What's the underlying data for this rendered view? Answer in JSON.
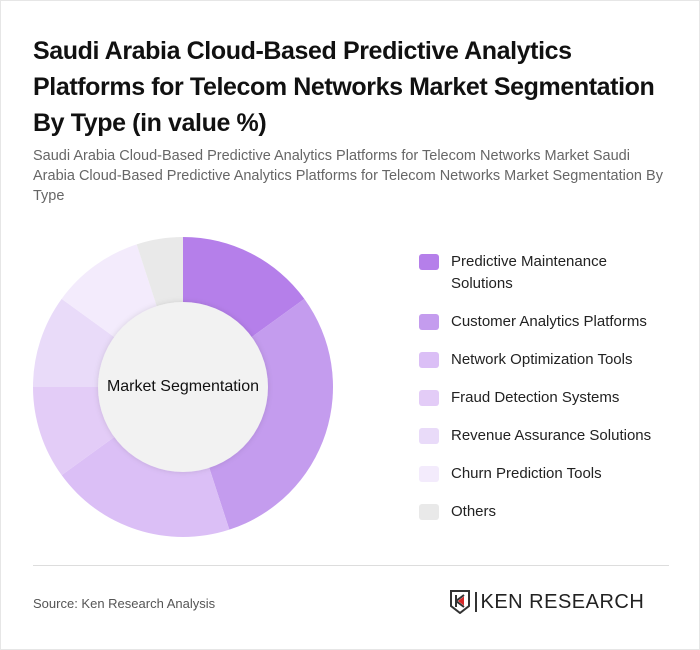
{
  "header": {
    "title": "Saudi Arabia Cloud-Based Predictive Analytics Platforms for Telecom Networks Market Segmentation By Type (in value %)",
    "subtitle": "Saudi Arabia Cloud-Based Predictive Analytics Platforms for Telecom Networks Market Saudi Arabia Cloud-Based Predictive Analytics Platforms for Telecom Networks Market Segmentation By Type"
  },
  "chart": {
    "center_label": "Market Segmentation"
  },
  "legend": {
    "items": [
      {
        "label": "Predictive Maintenance Solutions",
        "color": "#b57fea"
      },
      {
        "label": "Customer Analytics Platforms",
        "color": "#c49cee"
      },
      {
        "label": "Network Optimization Tools",
        "color": "#dbbff6"
      },
      {
        "label": "Fraud Detection Systems",
        "color": "#e3ccf7"
      },
      {
        "label": "Revenue Assurance Solutions",
        "color": "#e9dbf9"
      },
      {
        "label": "Churn Prediction Tools",
        "color": "#f3ebfc"
      },
      {
        "label": "Others",
        "color": "#e9e9e9"
      }
    ]
  },
  "footer": {
    "source": "Source: Ken Research Analysis",
    "logo_text": "KEN RESEARCH",
    "logo_mark": "K"
  },
  "chart_data": {
    "type": "pie",
    "title": "Saudi Arabia Cloud-Based Predictive Analytics Platforms for Telecom Networks Market Segmentation By Type (in value %)",
    "subtitle": "Market Segmentation",
    "categories": [
      "Predictive Maintenance Solutions",
      "Customer Analytics Platforms",
      "Network Optimization Tools",
      "Fraud Detection Systems",
      "Revenue Assurance Solutions",
      "Churn Prediction Tools",
      "Others"
    ],
    "values": [
      15,
      30,
      20,
      10,
      10,
      10,
      5
    ],
    "colors": [
      "#b57fea",
      "#c49cee",
      "#dbbff6",
      "#e3ccf7",
      "#e9dbf9",
      "#f3ebfc",
      "#e9e9e9"
    ],
    "donut": true,
    "legend_position": "right"
  }
}
